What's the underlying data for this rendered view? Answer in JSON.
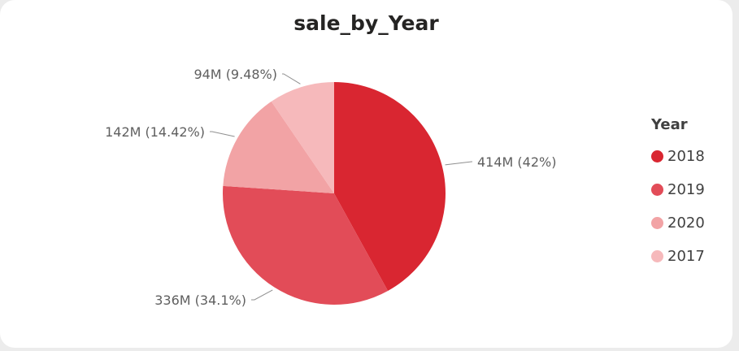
{
  "chart_data": {
    "type": "pie",
    "title": "sale_by_Year",
    "legend_title": "Year",
    "legend_position": "right",
    "slices": [
      {
        "category": "2018",
        "value": 414,
        "percent": 42,
        "label": "414M (42%)",
        "color": "#d92631"
      },
      {
        "category": "2019",
        "value": 336,
        "percent": 34.1,
        "label": "336M (34.1%)",
        "color": "#e24c58"
      },
      {
        "category": "2020",
        "value": 142,
        "percent": 14.42,
        "label": "142M (14.42%)",
        "color": "#f2a3a5"
      },
      {
        "category": "2017",
        "value": 94,
        "percent": 9.48,
        "label": "94M (9.48%)",
        "color": "#f6b9bb"
      }
    ]
  }
}
